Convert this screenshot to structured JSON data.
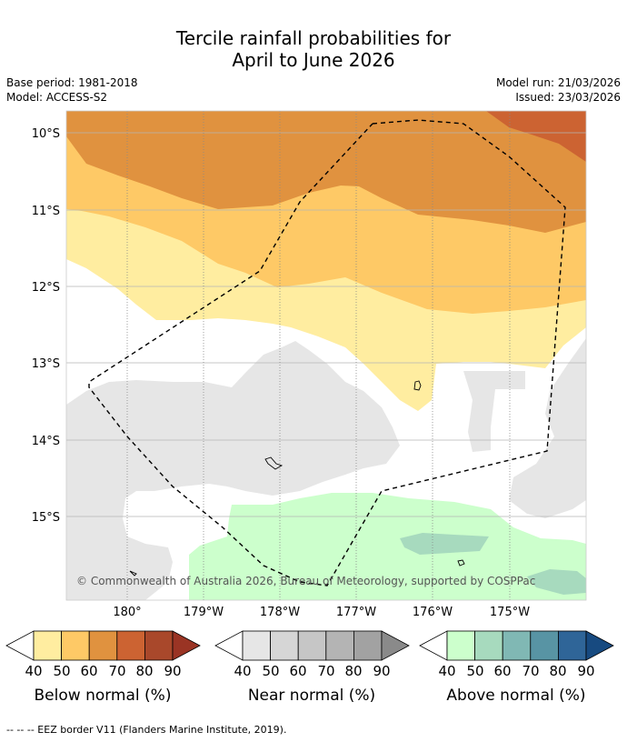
{
  "header": {
    "title_line1": "Tercile rainfall probabilities for",
    "title_line2": "April to June 2026",
    "base_period": "Base period: 1981-2018",
    "model": "Model: ACCESS-S2",
    "model_run": "Model run: 21/03/2026",
    "issued": "Issued: 23/03/2026"
  },
  "map": {
    "lat_labels": [
      "10°S",
      "11°S",
      "12°S",
      "13°S",
      "14°S",
      "15°S"
    ],
    "lon_labels": [
      "180°",
      "179°W",
      "178°W",
      "177°W",
      "176°W",
      "175°W"
    ],
    "copyright": "© Commonwealth of Australia 2026, Bureau of Meteorology, supported by COSPPac"
  },
  "legends": [
    {
      "title": "Below normal (%)",
      "ticks": [
        "40",
        "50",
        "60",
        "70",
        "80",
        "90"
      ],
      "colors": [
        "#ffeda0",
        "#fec966",
        "#e0923f",
        "#cc6332",
        "#a9482b",
        "#9a3424"
      ]
    },
    {
      "title": "Near normal (%)",
      "ticks": [
        "40",
        "50",
        "60",
        "70",
        "80",
        "90"
      ],
      "colors": [
        "#e6e6e6",
        "#d6d6d6",
        "#c6c6c6",
        "#b4b4b4",
        "#a2a2a2",
        "#8a8a8a"
      ]
    },
    {
      "title": "Above normal (%)",
      "ticks": [
        "40",
        "50",
        "60",
        "70",
        "80",
        "90"
      ],
      "colors": [
        "#ccffcc",
        "#a7dabe",
        "#80b8b4",
        "#5894a4",
        "#2f6598",
        "#174a80"
      ]
    }
  ],
  "footnote": "-- -- -- EEZ border V11 (Flanders Marine Institute, 2019)."
}
